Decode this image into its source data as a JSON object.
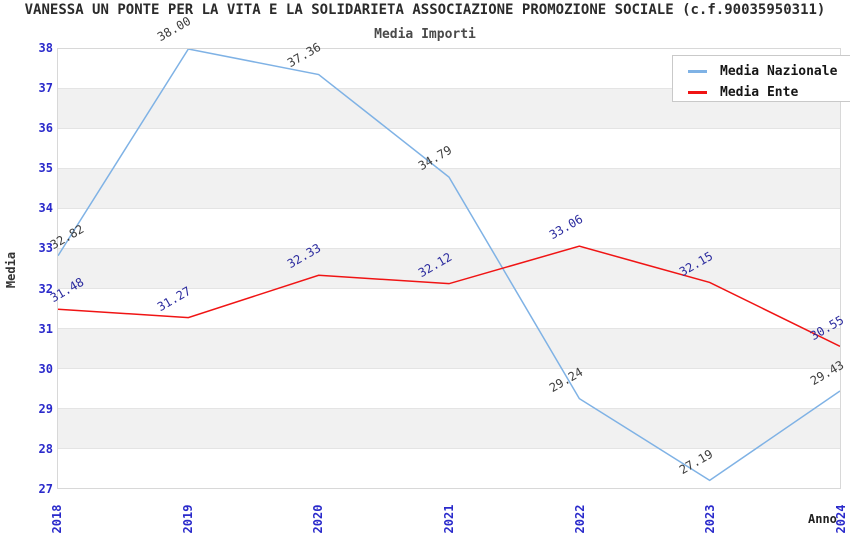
{
  "header": {
    "title": "VANESSA UN PONTE PER LA VITA E LA SOLIDARIETA ASSOCIAZIONE PROMOZIONE SOCIALE (c.f.90035950311)",
    "subtitle": "Media Importi"
  },
  "chart_data": {
    "type": "line",
    "title": "Media Importi",
    "x_categories": [
      "2018",
      "2019",
      "2020",
      "2021",
      "2022",
      "2023",
      "2024"
    ],
    "series": [
      {
        "name": "Media Nazionale",
        "color": "#7FB2E5",
        "label_color": "#3d3d3d",
        "values": [
          32.82,
          38.0,
          37.36,
          34.79,
          29.24,
          27.19,
          29.43
        ]
      },
      {
        "name": "Media Ente",
        "color": "#F01414",
        "label_color": "#2b2b9e",
        "values": [
          31.48,
          31.27,
          32.33,
          32.12,
          33.06,
          32.15,
          30.55
        ]
      }
    ],
    "xlabel": "Anno",
    "ylabel": "Media",
    "ylim": [
      27,
      38
    ],
    "ytick_step": 1,
    "grid": "alternating-horizontal-bands",
    "legend_position": "top-right"
  },
  "colors": {
    "axis_tick": "#2a2acb",
    "band_gray": "#f1f1f1",
    "gridline": "#e4e4e4",
    "plot_border": "#d8d8d8",
    "legend_border": "#c9c9c9",
    "background": "#ffffff"
  }
}
